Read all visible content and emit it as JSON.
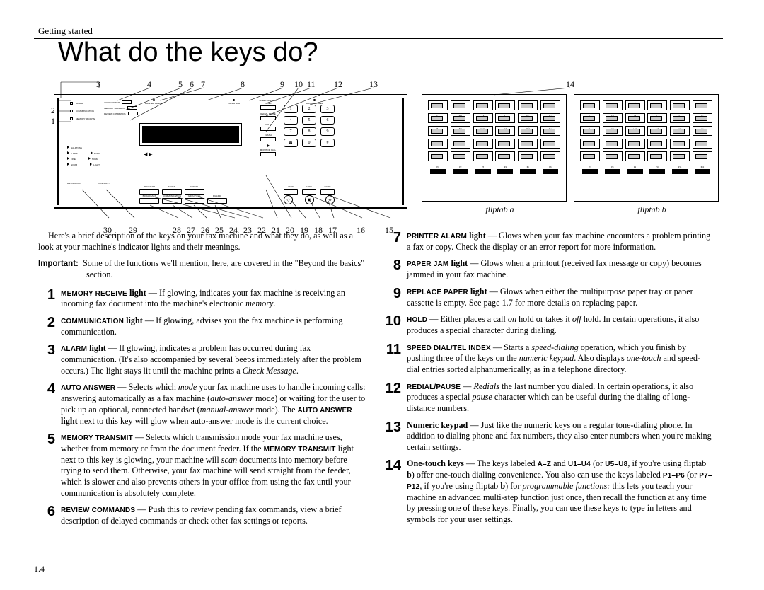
{
  "section_label": "Getting started",
  "page_title": "What do the keys do?",
  "page_number": "1.4",
  "fliptab_a_label": "fliptab a",
  "fliptab_b_label": "fliptab b",
  "callouts": {
    "top": {
      "c3": "3",
      "c4": "4",
      "c5": "5",
      "c6": "6",
      "c7": "7",
      "c8": "8",
      "c9": "9",
      "c10": "10",
      "c11": "11",
      "c12": "12",
      "c13": "13",
      "c14": "14"
    },
    "left": {
      "l3": "3",
      "l2": "2",
      "l1": "1"
    },
    "bottom": {
      "b30": "30",
      "b29": "29",
      "b28": "28",
      "b27": "27",
      "b26": "26",
      "b25": "25",
      "b24": "24",
      "b23": "23",
      "b22": "22",
      "b21": "21",
      "b20": "20",
      "b19": "19",
      "b18": "18",
      "b17": "17",
      "b16": "16",
      "b15": "15"
    }
  },
  "intro": "Here's a brief description of the keys on your fax machine and what they do, as well as a look at your machine's indicator lights and their meanings.",
  "important_label": "Important:",
  "important_text": "Some of the functions we'll mention, here, are covered in the \"Beyond the basics\" section.",
  "entries_left": [
    {
      "n": "1",
      "html": "<span class='scb'>Memory Receive</span> <b>light</b> — If glowing, indicates your fax machine is receiving an incoming fax document into the machine's electronic <em>memory</em>."
    },
    {
      "n": "2",
      "html": "<span class='scb'>Communication</span> <b>light</b> — If glowing, advises you the fax machine is performing communication."
    },
    {
      "n": "3",
      "html": "<span class='scb'>Alarm</span> <b>light</b> — If glowing, indicates a problem has occurred during fax communication. (It's also accompanied by several beeps immediately after the problem occurs.) The light stays lit until the machine prints a <em>Check Message</em>."
    },
    {
      "n": "4",
      "html": "<span class='scb'>Auto Answer</span> — Selects which <em>mode</em> your fax machine uses to handle incoming calls: answering automatically as a fax machine (<em>auto-answer</em> mode) or waiting for the user to pick up an optional, connected handset (<em>manual-answer</em> mode). The <span class='scb'>auto answer</span> <b>light</b> next to this key will glow when auto-answer mode is the current choice."
    },
    {
      "n": "5",
      "html": "<span class='scb'>Memory Transmit</span> — Selects which transmission mode your fax machine uses, whether from memory or from the document feeder. If the <span class='scb'>memory transmit</span> light next to this key is glowing, your machine will <em>scan</em> documents into memory before trying to send them. Otherwise, your fax machine will send straight from the feeder, which is slower and also prevents others in your office from using the fax until your communication is absolutely complete."
    },
    {
      "n": "6",
      "html": "<span class='scb'>Review Commands</span> — Push this to <em>review</em> pending fax commands, view a brief description of delayed commands or check other fax settings or reports."
    }
  ],
  "entries_right": [
    {
      "n": "7",
      "html": "<span class='scb'>Printer Alarm</span> <b>light</b> — Glows when your fax machine encounters a problem printing a fax or copy. Check the display or an error report for more information."
    },
    {
      "n": "8",
      "html": "<span class='scb'>Paper Jam</span> <b>light</b> — Glows when a printout (received fax message or copy) becomes jammed in your fax machine."
    },
    {
      "n": "9",
      "html": "<span class='scb'>Replace Paper</span> <b>light</b> — Glows when either the multipurpose paper tray or paper cassette is empty. See page 1.7 for more details on replacing paper."
    },
    {
      "n": "10",
      "html": "<span class='scb'>Hold</span> — Either places a call <em>on</em> hold or takes it <em>off</em> hold. In certain operations, it also produces a special character during dialing."
    },
    {
      "n": "11",
      "html": "<span class='scb'>Speed Dial/Tel Index</span> — Starts a <em>speed-dialing</em> operation, which you finish by pushing three of the keys on the <em>numeric keypad</em>. Also displays <em>one-touch</em> and speed-dial entries sorted alphanumerically, as in a telephone directory."
    },
    {
      "n": "12",
      "html": "<span class='scb'>Redial/Pause</span> — <em>Redials</em> the last number you dialed. In certain operations, it also produces a special <em>pause</em> character which can be useful during the dialing of long-distance numbers."
    },
    {
      "n": "13",
      "html": "<b>Numeric keypad</b> — Just like the numeric keys on a regular tone-dialing phone. In addition to dialing phone and fax numbers, they also enter numbers when you're making certain settings."
    },
    {
      "n": "14",
      "html": "<b>One-touch keys</b> — The keys labeled <span class='scb'>a–z</span> and <span class='scb'>u1–u4</span> (or <span class='scb'>u5–u8</span>, if you're using fliptab <b>b</b>) offer one-touch dialing convenience. You also can use the keys labeled <span class='scb'>p1–p6</span> (or <span class='scb'>p7–p12</span>, if you're using fliptab <b>b</b>) for <em>programmable functions:</em> this lets you teach your machine an advanced multi-step function just once, then recall the function at any time by pressing one of these keys. Finally, you can use these keys to type in letters and symbols for your user settings."
    }
  ],
  "panel": {
    "status": [
      "PRINTER ALARM",
      "PAPER JAM",
      "REPLACE PAPER"
    ],
    "left_leds": [
      "ALARM",
      "COMMUNICATION",
      "MEMORY RECEIVE"
    ],
    "mid_leds": [
      "AUTO ANSWER",
      "MEMORY TRANSMIT",
      "REVIEW COMMANDS"
    ],
    "res_rows": [
      [
        "HALFTONE",
        ""
      ],
      [
        "S-FINE",
        "DARK"
      ],
      [
        "FINE",
        "NORM"
      ],
      [
        "NORM",
        "LIGHT"
      ]
    ],
    "res_labels": [
      "RESOLUTION",
      "CONTRAST"
    ],
    "broadcast_row": [
      "BROADCAST",
      "COMMUNICATION OPTIONS",
      "GROUP DIAL",
      "DIALING OPTIONS"
    ],
    "prog_row": [
      "PROGRAM",
      "ENTER",
      "CANCEL"
    ],
    "redial": [
      "SPEED DIAL / TEL INDEX",
      "REDIAL PAUSE",
      "HOLD",
      "FLASH",
      "MONITOR CALL"
    ],
    "keypad_labels": [
      [
        "sp",
        "abc",
        "def"
      ],
      [
        "ghi",
        "jkl",
        "mno"
      ],
      [
        "pqrs",
        "tuv",
        "wxyz"
      ],
      [
        "sym",
        "",
        "oper"
      ]
    ],
    "keypad": [
      [
        "1",
        "2",
        "3"
      ],
      [
        "4",
        "5",
        "6"
      ],
      [
        "7",
        "8",
        "9"
      ],
      [
        "✽",
        "0",
        "#"
      ]
    ],
    "scs": [
      "STOP",
      "COPY",
      "START"
    ],
    "circ": [
      "◇",
      "▣",
      "◈"
    ]
  },
  "fliptab_a_rows": [
    [
      "A .",
      "B ,",
      "C $",
      "D %",
      "E &",
      "F :"
    ],
    [
      "G !",
      "H ?",
      "I *",
      "J -",
      "K /",
      "L ="
    ],
    [
      "M _",
      "N ''",
      "O <>",
      "P @",
      "Q ()",
      "R ~"
    ],
    [
      "S ?",
      "T ©",
      "U [",
      "V ]",
      "W {",
      "X }"
    ],
    [
      "Y +",
      "Z SPACE",
      "U1 ABC",
      "U2 abc",
      "U3 SYMBOL",
      "U4 CODE"
    ]
  ],
  "fliptab_a_p": [
    "P1",
    "P2",
    "P3",
    "P4",
    "P5",
    "P6"
  ],
  "fliptab_b_rows": [
    [
      "a .",
      "b ,",
      "c $",
      "d %",
      "e &",
      "f :"
    ],
    [
      "g !",
      "h ?",
      "i *",
      "j -",
      "k /",
      "l ="
    ],
    [
      "m _",
      "n ''",
      "o <>",
      "p @",
      "q ()",
      "r ~"
    ],
    [
      "s ?",
      "t ©",
      "u [",
      "v ]",
      "w {",
      "x }"
    ],
    [
      "y +",
      "z SPACE",
      "U5 ABC",
      "U6 abc",
      "U7 SYMBOL",
      "U8 CODE"
    ]
  ],
  "fliptab_b_p": [
    "P7",
    "P8",
    "P9",
    "P10",
    "P11",
    "P12"
  ]
}
